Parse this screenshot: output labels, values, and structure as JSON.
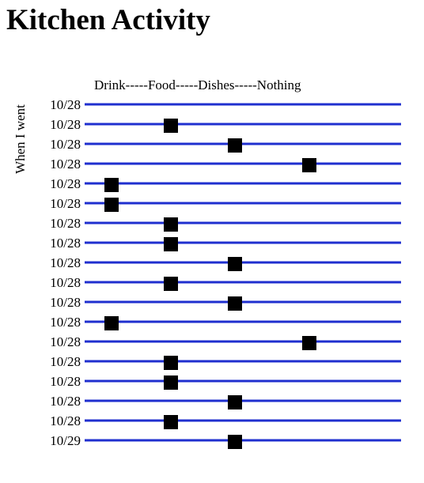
{
  "page": {
    "title": "Kitchen Activity"
  },
  "chart_data": {
    "type": "scatter",
    "title": "Kitchen Activity",
    "xlabel": "Drink-----Food-----Dishes-----Nothing",
    "ylabel": "When I went",
    "categories": [
      "Drink",
      "Food",
      "Dishes",
      "Nothing"
    ],
    "line_color": "#1f2fcf",
    "marker_color": "#000000",
    "grid": true,
    "rows": [
      {
        "label": "10/28",
        "activity": null
      },
      {
        "label": "10/28",
        "activity": "Food"
      },
      {
        "label": "10/28",
        "activity": "Dishes"
      },
      {
        "label": "10/28",
        "activity": "Nothing"
      },
      {
        "label": "10/28",
        "activity": "Drink"
      },
      {
        "label": "10/28",
        "activity": "Drink"
      },
      {
        "label": "10/28",
        "activity": "Food"
      },
      {
        "label": "10/28",
        "activity": "Food"
      },
      {
        "label": "10/28",
        "activity": "Dishes"
      },
      {
        "label": "10/28",
        "activity": "Food"
      },
      {
        "label": "10/28",
        "activity": "Dishes"
      },
      {
        "label": "10/28",
        "activity": "Drink"
      },
      {
        "label": "10/28",
        "activity": "Nothing"
      },
      {
        "label": "10/28",
        "activity": "Food"
      },
      {
        "label": "10/28",
        "activity": "Food"
      },
      {
        "label": "10/28",
        "activity": "Dishes"
      },
      {
        "label": "10/28",
        "activity": "Food"
      },
      {
        "label": "10/29",
        "activity": "Dishes"
      }
    ]
  }
}
